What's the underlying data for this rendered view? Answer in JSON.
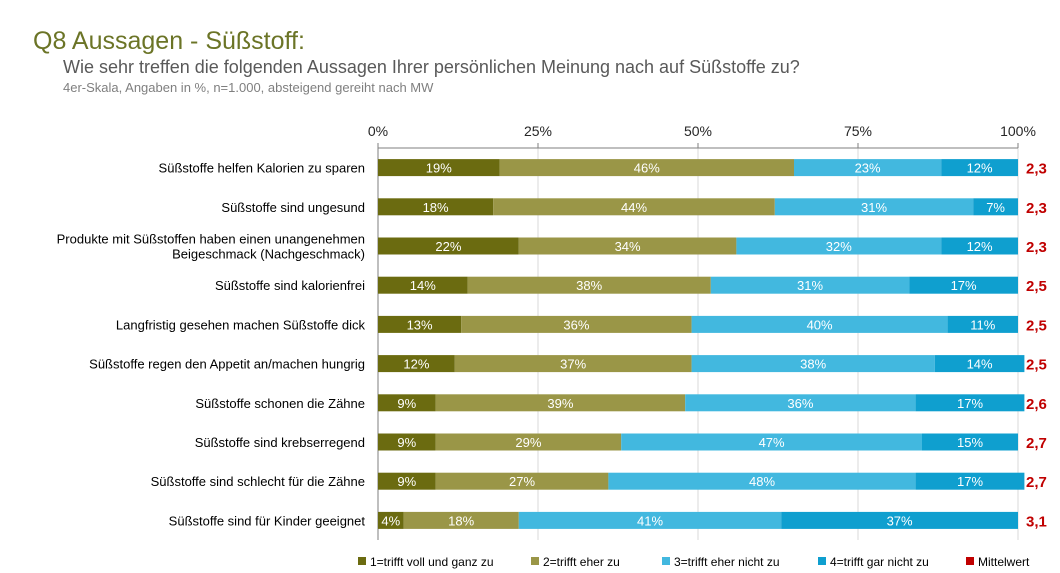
{
  "page": {
    "title": "Q8 Aussagen - Süßstoff:",
    "subtitle": "Wie sehr treffen die folgenden Aussagen Ihrer persönlichen Meinung nach auf Süßstoffe zu?",
    "note": "4er-Skala, Angaben in %, n=1.000, absteigend gereiht nach MW"
  },
  "chart_data": {
    "type": "bar",
    "orientation": "horizontal",
    "stacked": true,
    "x_ticks": [
      "0%",
      "25%",
      "50%",
      "75%",
      "100%"
    ],
    "xlim": [
      0,
      100
    ],
    "categories": [
      [
        "Süßstoffe helfen Kalorien zu sparen"
      ],
      [
        "Süßstoffe sind ungesund"
      ],
      [
        "Produkte mit Süßstoffen haben einen unangenehmen",
        "Beigeschmack (Nachgeschmack)"
      ],
      [
        "Süßstoffe sind kalorienfrei"
      ],
      [
        "Langfristig gesehen machen Süßstoffe dick"
      ],
      [
        "Süßstoffe regen den Appetit an/machen hungrig"
      ],
      [
        "Süßstoffe schonen die Zähne"
      ],
      [
        "Süßstoffe sind krebserregend"
      ],
      [
        "Süßstoffe sind schlecht für die Zähne"
      ],
      [
        "Süßstoffe sind für Kinder geeignet"
      ]
    ],
    "series": [
      {
        "name": "1=trifft voll und ganz zu",
        "color": "#6b6b10",
        "values": [
          19,
          18,
          22,
          14,
          13,
          12,
          9,
          9,
          9,
          4
        ]
      },
      {
        "name": "2=trifft eher zu",
        "color": "#9a9647",
        "values": [
          46,
          44,
          34,
          38,
          36,
          37,
          39,
          29,
          27,
          18
        ]
      },
      {
        "name": "3=trifft eher nicht zu",
        "color": "#42b8df",
        "values": [
          23,
          31,
          32,
          31,
          40,
          38,
          36,
          47,
          48,
          41
        ]
      },
      {
        "name": "4=trifft gar nicht zu",
        "color": "#0f9fcf",
        "values": [
          12,
          7,
          12,
          17,
          11,
          14,
          17,
          15,
          17,
          37
        ]
      }
    ],
    "mean": {
      "name": "Mittelwert",
      "color": "#c00000",
      "values": [
        "2,3",
        "2,3",
        "2,3",
        "2,5",
        "2,5",
        "2,5",
        "2,6",
        "2,7",
        "2,7",
        "3,1"
      ]
    },
    "legend": "bottom",
    "grid": true
  }
}
